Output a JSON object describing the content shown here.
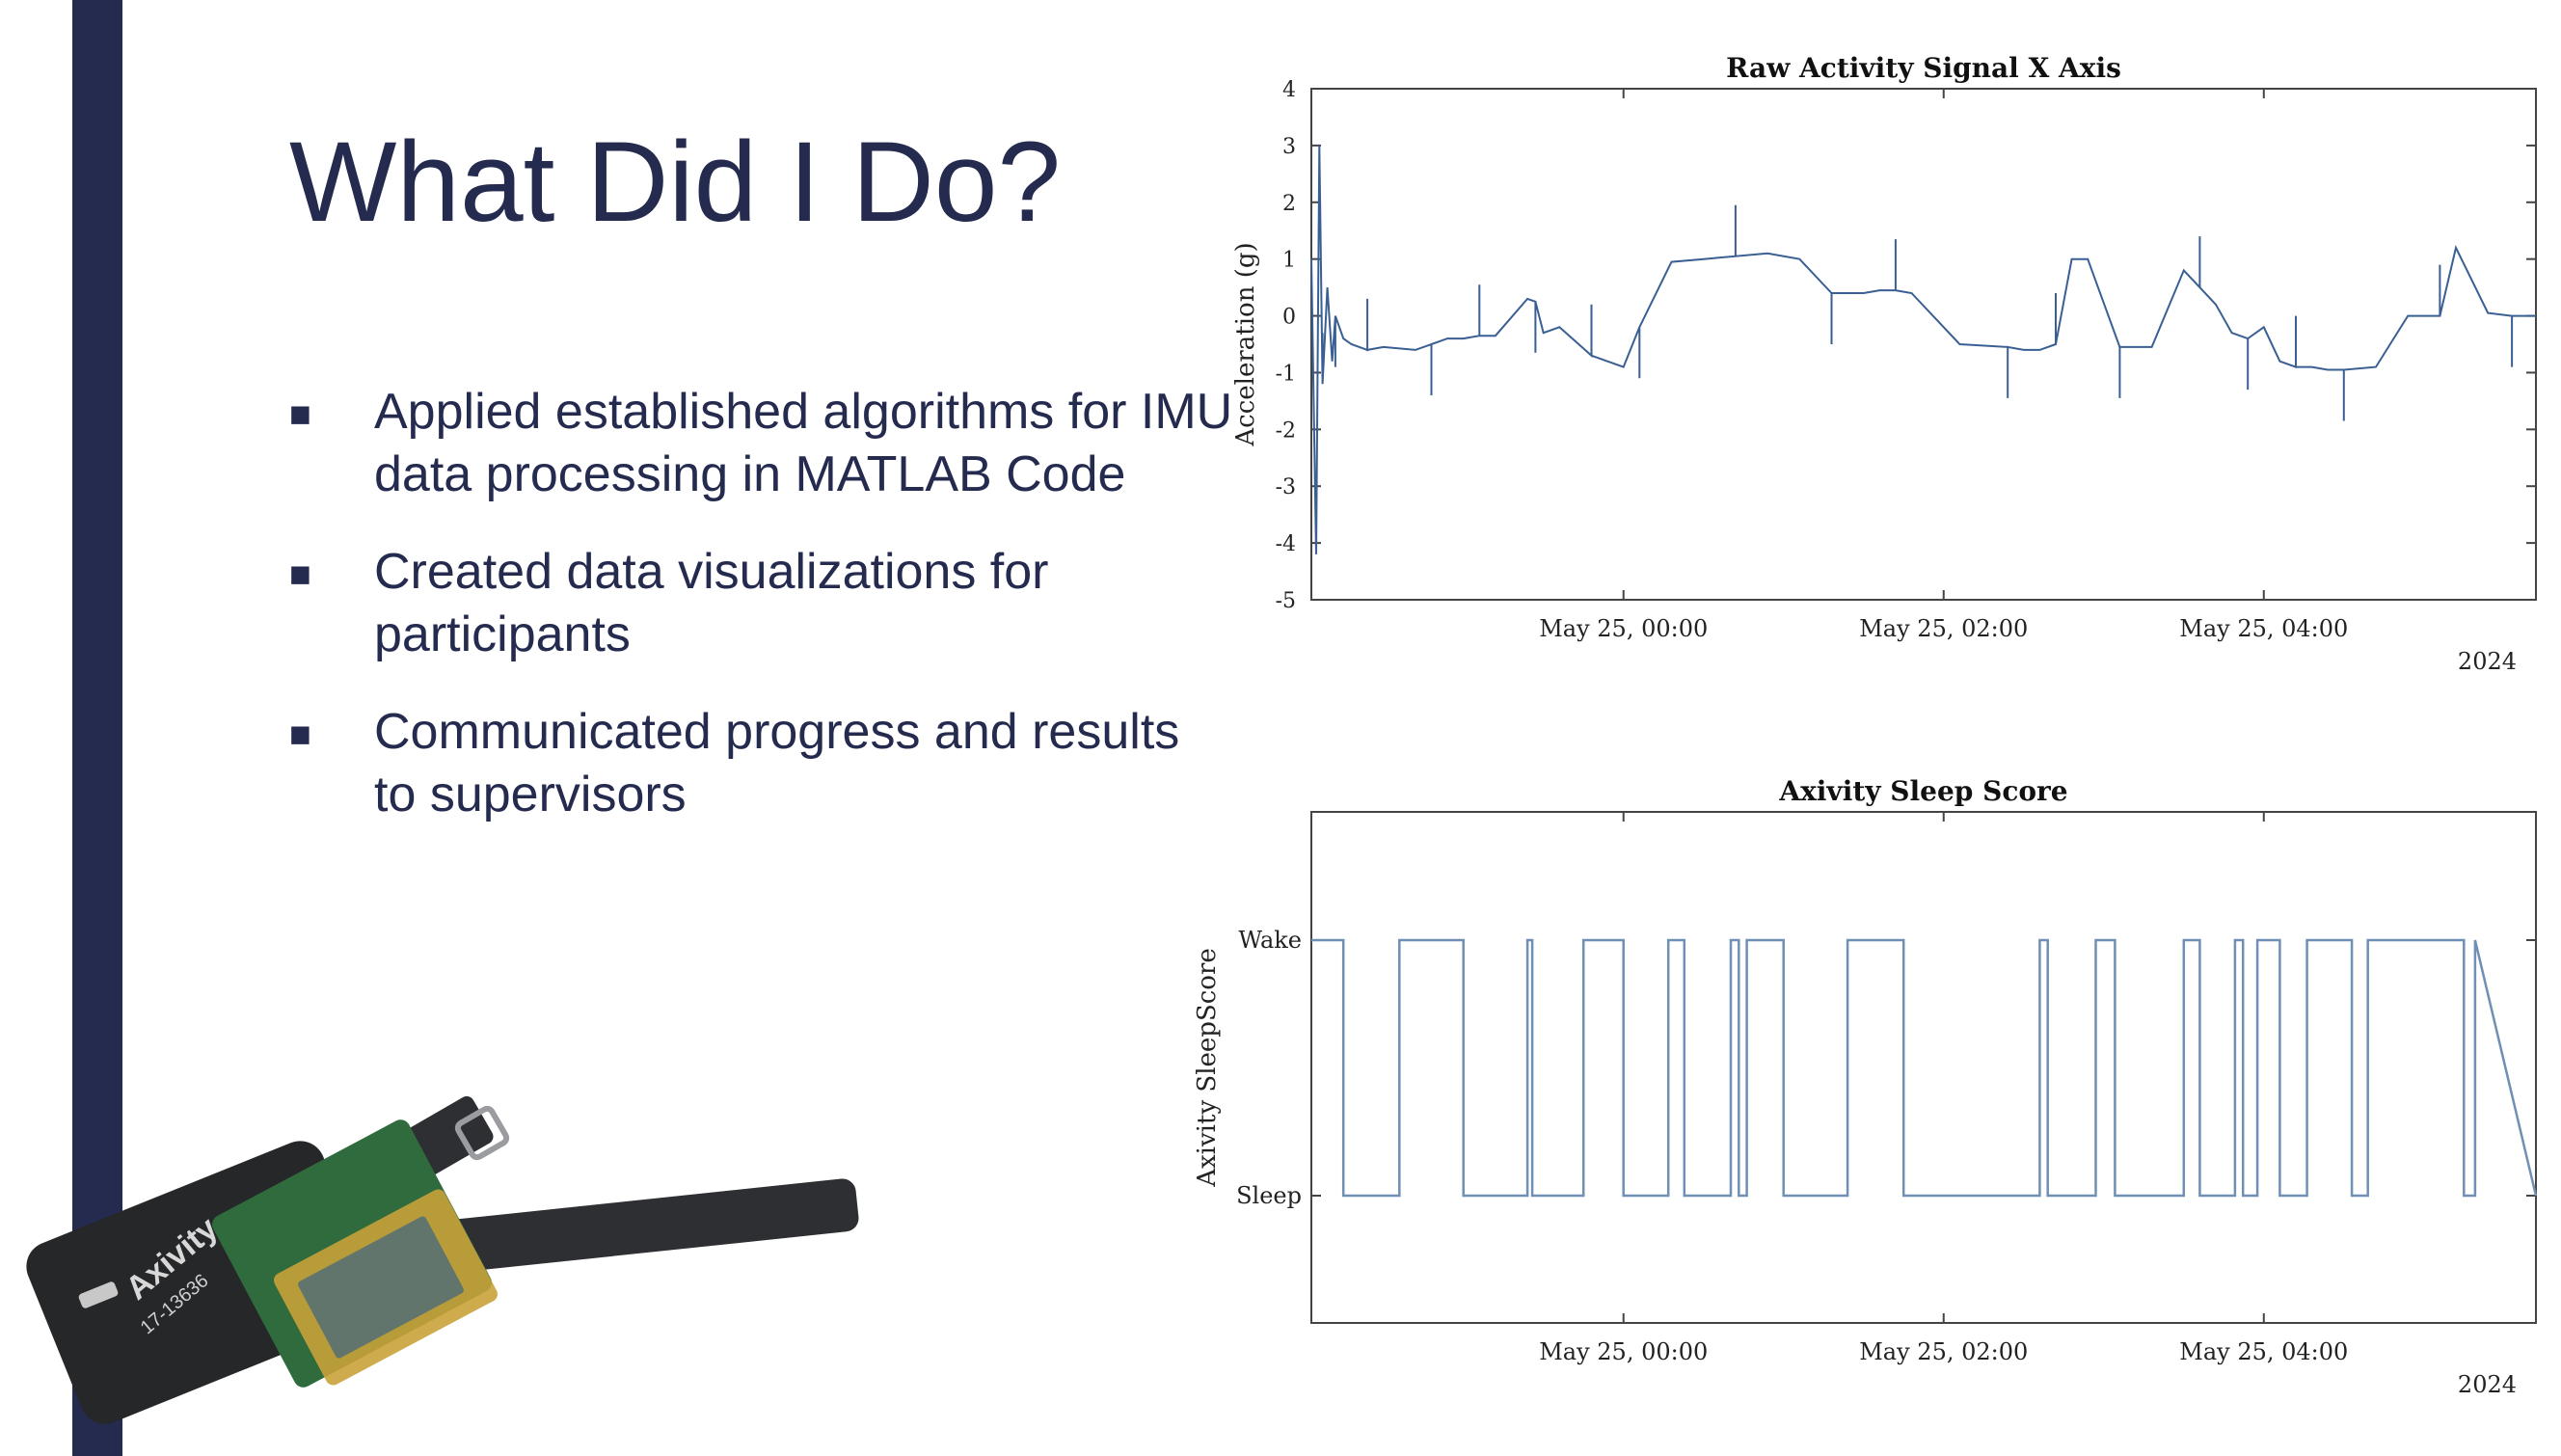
{
  "slide": {
    "title": "What Did I Do?",
    "bullets": [
      "Applied established algorithms for IMU data processing in MATLAB Code",
      "Created data visualizations for participants",
      "Communicated progress and results to supervisors"
    ],
    "bullet_symbol": "■",
    "device_label": "Axivity",
    "device_serial": "17-13636"
  },
  "colors": {
    "accent_bar": "#252a4f",
    "text": "#252a4f",
    "signal_line": "#3a5f93",
    "score_line": "#6f8fb5"
  },
  "chart_data": [
    {
      "type": "line",
      "title": "Raw Activity Signal X Axis",
      "xlabel": "",
      "ylabel": "Acceleration (g)",
      "xlim": [
        22.05,
        5.85
      ],
      "x_wrap_note": "x values in hours after 20:00 on May 24, 2024 are not used; see x_hours",
      "ylim": [
        -5,
        4
      ],
      "yticks": [
        4,
        3,
        2,
        1,
        0,
        -1,
        -2,
        -3,
        -4,
        -5
      ],
      "xticks": [
        {
          "label": "May 25, 00:00",
          "hour": 0
        },
        {
          "label": "May 25, 02:00",
          "hour": 2
        },
        {
          "label": "May 25, 04:00",
          "hour": 4
        }
      ],
      "x_axis_secondary_label": "2024",
      "x_range_hours": [
        -1.95,
        5.7
      ],
      "series": [
        {
          "x_hours": [
            -1.95,
            -1.92,
            -1.9,
            -1.88,
            -1.85,
            -1.82,
            -1.8,
            -1.75,
            -1.7,
            -1.6,
            -1.5,
            -1.3,
            -1.2,
            -1.1,
            -1.0,
            -0.9,
            -0.8,
            -0.6,
            -0.55,
            -0.5,
            -0.4,
            -0.2,
            -0.1,
            0.0,
            0.1,
            0.3,
            0.5,
            0.7,
            0.9,
            1.1,
            1.3,
            1.5,
            1.6,
            1.7,
            1.8,
            2.1,
            2.4,
            2.5,
            2.6,
            2.7,
            2.8,
            2.9,
            3.1,
            3.3,
            3.5,
            3.6,
            3.7,
            3.8,
            3.9,
            4.0,
            4.1,
            4.2,
            4.3,
            4.4,
            4.5,
            4.7,
            4.9,
            5.1,
            5.2,
            5.4,
            5.55,
            5.7
          ],
          "y_values": [
            1.0,
            -4.2,
            3.0,
            -1.2,
            0.5,
            -0.8,
            0.0,
            -0.4,
            -0.5,
            -0.6,
            -0.55,
            -0.6,
            -0.5,
            -0.4,
            -0.4,
            -0.35,
            -0.35,
            0.3,
            0.25,
            -0.3,
            -0.2,
            -0.7,
            -0.8,
            -0.9,
            -0.2,
            0.95,
            1.0,
            1.05,
            1.1,
            1.0,
            0.4,
            0.4,
            0.45,
            0.45,
            0.4,
            -0.5,
            -0.55,
            -0.6,
            -0.6,
            -0.5,
            1.0,
            1.0,
            -0.55,
            -0.55,
            0.8,
            0.5,
            0.2,
            -0.3,
            -0.4,
            -0.2,
            -0.8,
            -0.9,
            -0.9,
            -0.95,
            -0.95,
            -0.9,
            0.0,
            0.0,
            1.2,
            0.05,
            0.0,
            0.0
          ]
        }
      ]
    },
    {
      "type": "line",
      "title": "Axivity Sleep Score",
      "xlabel": "",
      "ylabel": "Axivity SleepScore",
      "yticks": [
        "Wake",
        "Sleep"
      ],
      "xticks": [
        {
          "label": "May 25, 00:00",
          "hour": 0
        },
        {
          "label": "May 25, 02:00",
          "hour": 2
        },
        {
          "label": "May 25, 04:00",
          "hour": 4
        }
      ],
      "x_axis_secondary_label": "2024",
      "x_range_hours": [
        -1.95,
        5.7
      ],
      "series": [
        {
          "x_hours": [
            -1.95,
            -1.75,
            -1.75,
            -1.4,
            -1.4,
            -1.0,
            -1.0,
            -0.6,
            -0.6,
            -0.57,
            -0.57,
            -0.25,
            -0.25,
            0.0,
            0.0,
            0.28,
            0.28,
            0.38,
            0.38,
            0.67,
            0.67,
            0.72,
            0.72,
            0.77,
            0.77,
            1.0,
            1.0,
            1.4,
            1.4,
            1.75,
            1.75,
            2.6,
            2.6,
            2.65,
            2.65,
            2.95,
            2.95,
            3.07,
            3.07,
            3.5,
            3.5,
            3.6,
            3.6,
            3.82,
            3.82,
            3.87,
            3.87,
            3.96,
            3.96,
            4.1,
            4.1,
            4.27,
            4.27,
            4.55,
            4.55,
            4.65,
            4.65,
            5.25,
            5.25,
            5.32,
            5.32,
            5.7
          ],
          "y_values": [
            "Wake",
            "Wake",
            "Sleep",
            "Sleep",
            "Wake",
            "Wake",
            "Sleep",
            "Sleep",
            "Wake",
            "Wake",
            "Sleep",
            "Sleep",
            "Wake",
            "Wake",
            "Sleep",
            "Sleep",
            "Wake",
            "Wake",
            "Sleep",
            "Sleep",
            "Wake",
            "Wake",
            "Sleep",
            "Sleep",
            "Wake",
            "Wake",
            "Sleep",
            "Sleep",
            "Wake",
            "Wake",
            "Sleep",
            "Sleep",
            "Wake",
            "Wake",
            "Sleep",
            "Sleep",
            "Wake",
            "Wake",
            "Sleep",
            "Sleep",
            "Wake",
            "Wake",
            "Sleep",
            "Sleep",
            "Wake",
            "Wake",
            "Sleep",
            "Sleep",
            "Wake",
            "Wake",
            "Sleep",
            "Sleep",
            "Wake",
            "Wake",
            "Sleep",
            "Sleep",
            "Wake",
            "Wake",
            "Sleep",
            "Sleep",
            "Wake",
            "Sleep"
          ]
        }
      ]
    }
  ]
}
